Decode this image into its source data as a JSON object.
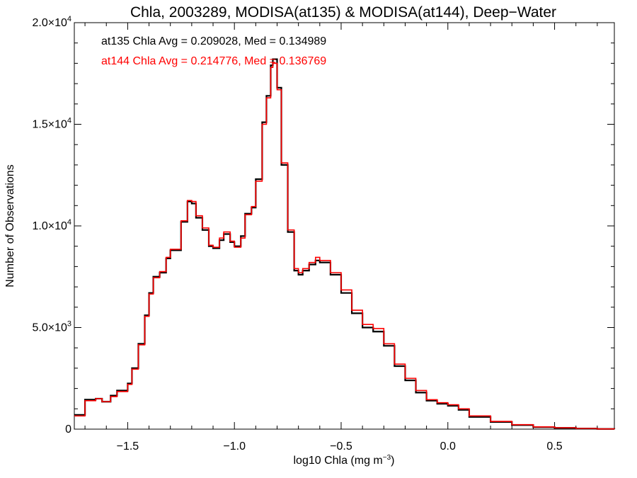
{
  "chart_data": {
    "type": "line",
    "step": true,
    "title": "Chla, 2003289, MODISA(at135) & MODISA(at144), Deep−Water",
    "xlabel": "log10 Chla (mg m",
    "xlabel_sup": "−3",
    "xlabel_tail": ")",
    "ylabel": "Number of Observations",
    "xlim": [
      -1.75,
      0.78
    ],
    "ylim": [
      0,
      20000
    ],
    "x_ticks": [
      {
        "value": -1.5,
        "label": "−1.5"
      },
      {
        "value": -1.0,
        "label": "−1.0"
      },
      {
        "value": -0.5,
        "label": "−0.5"
      },
      {
        "value": 0.0,
        "label": "0.0"
      },
      {
        "value": 0.5,
        "label": "0.5"
      }
    ],
    "y_ticks": [
      {
        "value": 0,
        "label": "0",
        "sup": ""
      },
      {
        "value": 5000,
        "label": "5.0×10",
        "sup": "3"
      },
      {
        "value": 10000,
        "label": "1.0×10",
        "sup": "4"
      },
      {
        "value": 15000,
        "label": "1.5×10",
        "sup": "4"
      },
      {
        "value": 20000,
        "label": "2.0×10",
        "sup": "4"
      }
    ],
    "grid": false,
    "annotations": [
      {
        "text": "at135 Chla Avg = 0.209028, Med = 0.134989",
        "color": "#000000"
      },
      {
        "text": "at144 Chla Avg = 0.214776, Med = 0.136769",
        "color": "#ff0000"
      }
    ],
    "series": [
      {
        "name": "at135",
        "color": "#000000",
        "x": [
          -1.75,
          -1.7,
          -1.65,
          -1.62,
          -1.58,
          -1.55,
          -1.5,
          -1.48,
          -1.45,
          -1.42,
          -1.4,
          -1.38,
          -1.35,
          -1.32,
          -1.3,
          -1.25,
          -1.22,
          -1.2,
          -1.18,
          -1.15,
          -1.12,
          -1.1,
          -1.07,
          -1.05,
          -1.02,
          -1.0,
          -0.97,
          -0.95,
          -0.92,
          -0.9,
          -0.87,
          -0.85,
          -0.83,
          -0.82,
          -0.8,
          -0.78,
          -0.75,
          -0.72,
          -0.7,
          -0.68,
          -0.65,
          -0.62,
          -0.6,
          -0.55,
          -0.5,
          -0.45,
          -0.4,
          -0.35,
          -0.3,
          -0.25,
          -0.2,
          -0.15,
          -0.1,
          -0.05,
          0.0,
          0.05,
          0.1,
          0.2,
          0.3,
          0.4,
          0.5,
          0.6,
          0.7,
          0.78
        ],
        "y": [
          700,
          1450,
          1500,
          1350,
          1650,
          1900,
          2250,
          3000,
          4200,
          5600,
          6700,
          7500,
          7700,
          8400,
          8800,
          10200,
          11200,
          11100,
          10400,
          9800,
          9000,
          8900,
          9300,
          9600,
          9200,
          9000,
          9500,
          10600,
          10900,
          12300,
          15100,
          16400,
          17900,
          18200,
          16800,
          13000,
          9700,
          7800,
          7600,
          7800,
          8100,
          8300,
          8200,
          7600,
          6700,
          5700,
          5000,
          4800,
          4100,
          3100,
          2400,
          1800,
          1400,
          1250,
          1150,
          950,
          600,
          350,
          200,
          100,
          60,
          30,
          10,
          0
        ]
      },
      {
        "name": "at144",
        "color": "#ff0000",
        "x": [
          -1.75,
          -1.7,
          -1.65,
          -1.62,
          -1.58,
          -1.55,
          -1.5,
          -1.48,
          -1.45,
          -1.42,
          -1.4,
          -1.38,
          -1.35,
          -1.32,
          -1.3,
          -1.25,
          -1.22,
          -1.2,
          -1.18,
          -1.15,
          -1.12,
          -1.1,
          -1.07,
          -1.05,
          -1.02,
          -1.0,
          -0.97,
          -0.95,
          -0.92,
          -0.9,
          -0.87,
          -0.85,
          -0.83,
          -0.82,
          -0.8,
          -0.78,
          -0.75,
          -0.72,
          -0.7,
          -0.68,
          -0.65,
          -0.62,
          -0.6,
          -0.55,
          -0.5,
          -0.45,
          -0.4,
          -0.35,
          -0.3,
          -0.25,
          -0.2,
          -0.15,
          -0.1,
          -0.05,
          0.0,
          0.05,
          0.1,
          0.2,
          0.3,
          0.4,
          0.5,
          0.6,
          0.7,
          0.78
        ],
        "y": [
          650,
          1400,
          1500,
          1350,
          1600,
          1850,
          2200,
          2950,
          4150,
          5550,
          6650,
          7450,
          7750,
          8450,
          8850,
          10250,
          11250,
          11200,
          10500,
          9900,
          9050,
          8950,
          9400,
          9700,
          9250,
          8950,
          9400,
          10550,
          10950,
          12200,
          15000,
          16300,
          17800,
          18000,
          16700,
          13100,
          9800,
          7900,
          7700,
          7900,
          8200,
          8450,
          8300,
          7700,
          6850,
          5850,
          5150,
          4950,
          4200,
          3200,
          2500,
          1900,
          1450,
          1300,
          1200,
          1000,
          650,
          380,
          220,
          110,
          70,
          35,
          12,
          0
        ]
      }
    ]
  }
}
